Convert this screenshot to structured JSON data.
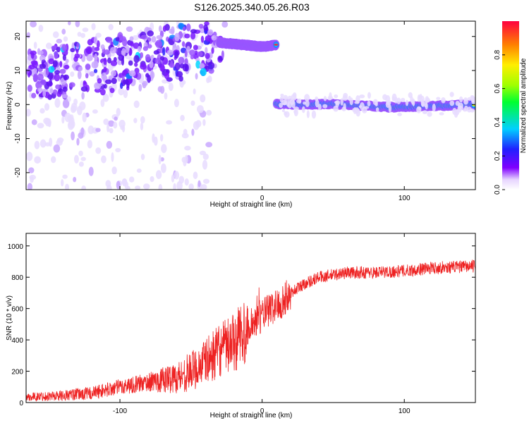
{
  "title": "S126.2025.340.05.26.R03",
  "chart_data": [
    {
      "type": "heatmap",
      "xlabel": "Height of straight line (km)",
      "ylabel": "Frequency (Hz)",
      "xlim": [
        -166,
        150
      ],
      "ylim": [
        -25,
        24.5
      ],
      "xticks": [
        -100,
        0,
        100
      ],
      "yticks": [
        -20,
        -10,
        0,
        10,
        20
      ],
      "colorbar": {
        "label": "Normalized spectral amplitude",
        "range": [
          0.0,
          1.0
        ],
        "ticks": [
          "0.0",
          "0.2",
          "0.4",
          "0.6",
          "0.8"
        ]
      },
      "tracks": [
        {
          "x": [
            -30,
            -25,
            -20,
            -15,
            -10,
            -5,
            0,
            5,
            10
          ],
          "y": [
            18.2,
            18.0,
            17.8,
            17.6,
            17.4,
            17.2,
            17.0,
            17.2,
            17.5
          ]
        },
        {
          "x": [
            10,
            30,
            50,
            70,
            90,
            110,
            130,
            150
          ],
          "y": [
            0.2,
            0.0,
            0.1,
            -0.3,
            -0.8,
            -0.5,
            -0.3,
            0.0
          ]
        }
      ]
    },
    {
      "type": "line",
      "xlabel": "Height of straight line (km)",
      "ylabel": "SNR (10 * v/v)",
      "xlim": [
        -166,
        150
      ],
      "ylim": [
        0,
        1080
      ],
      "xticks": [
        -100,
        0,
        100
      ],
      "yticks": [
        0,
        200,
        400,
        600,
        800,
        1000
      ],
      "series": [
        {
          "color": "#ee2222",
          "x": [
            -166,
            -140,
            -120,
            -100,
            -80,
            -60,
            -50,
            -40,
            -30,
            -20,
            -15,
            -10,
            -5,
            0,
            5,
            10,
            15,
            20,
            30,
            40,
            60,
            80,
            100,
            120,
            150
          ],
          "values": [
            35,
            45,
            60,
            100,
            130,
            160,
            200,
            260,
            330,
            380,
            430,
            470,
            520,
            560,
            590,
            620,
            650,
            700,
            760,
            800,
            830,
            830,
            840,
            860,
            870
          ]
        }
      ]
    }
  ]
}
